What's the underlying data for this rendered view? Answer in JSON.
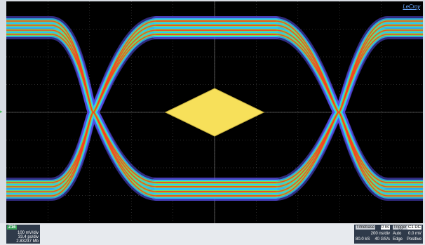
{
  "brand": "LeCroy",
  "channel": {
    "tag": "Z16",
    "volts_per_div": "100 mV/div",
    "points_per_div": "33.4 ps/div",
    "value": "2.83237 Mb"
  },
  "timebase": {
    "label": "Timebase",
    "offset": "0 ns",
    "time_per_div": "200 ns/div",
    "samples": "80.0 kS",
    "sample_rate": "40 GS/s"
  },
  "trigger": {
    "label": "Trigger",
    "channel": "C1 DC",
    "mode": "Auto",
    "level": "0.0 mV",
    "type": "Edge",
    "slope": "Positive"
  },
  "colors": {
    "mask": "#f7e05a",
    "grid": "#5a5a5a",
    "trace_hot": "#ff3b1c",
    "trace_mid": "#7de24a",
    "trace_cool": "#2ec7ff",
    "trace_outer": "#5a4ee8"
  }
}
